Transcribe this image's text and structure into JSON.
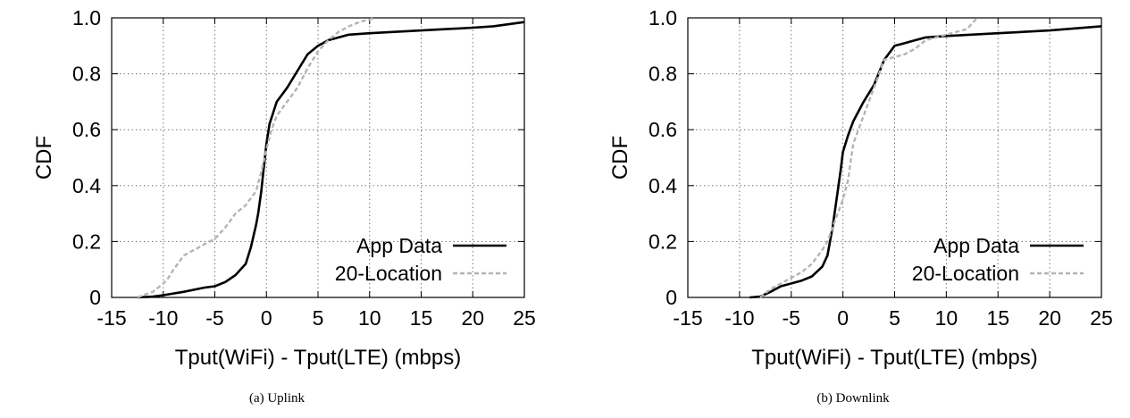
{
  "chart_data": [
    {
      "type": "line",
      "caption": "(a) Uplink",
      "xlabel": "Tput(WiFi) - Tput(LTE) (mbps)",
      "ylabel": "CDF",
      "xlim": [
        -15,
        25
      ],
      "ylim": [
        0,
        1
      ],
      "xticks": [
        "-15",
        "-10",
        "-5",
        "0",
        "5",
        "10",
        "15",
        "20",
        "25"
      ],
      "yticks": [
        "0",
        "0.2",
        "0.4",
        "0.6",
        "0.8",
        "1.0"
      ],
      "grid": true,
      "legend_position": "bottom-right",
      "series": [
        {
          "name": "App Data",
          "color": "#000000",
          "style": "solid",
          "x": [
            -12.5,
            -11,
            -10,
            -8,
            -6,
            -5,
            -4,
            -3,
            -2,
            -1.5,
            -1,
            -0.8,
            -0.5,
            -0.3,
            0,
            0.3,
            1,
            2,
            3,
            4,
            5,
            6,
            7,
            8,
            10,
            15,
            20,
            22,
            25
          ],
          "y": [
            0,
            0.003,
            0.008,
            0.02,
            0.035,
            0.04,
            0.055,
            0.08,
            0.12,
            0.18,
            0.26,
            0.3,
            0.38,
            0.45,
            0.55,
            0.62,
            0.7,
            0.75,
            0.81,
            0.87,
            0.9,
            0.92,
            0.93,
            0.94,
            0.945,
            0.955,
            0.965,
            0.97,
            0.985
          ]
        },
        {
          "name": "20-Location",
          "color": "#b4b4b4",
          "style": "dashed",
          "x": [
            -12.5,
            -11,
            -10,
            -9.5,
            -9,
            -8,
            -6,
            -5,
            -4,
            -3,
            -2,
            -1,
            -0.5,
            0,
            0.5,
            1,
            2,
            3,
            4,
            5,
            6,
            7,
            8,
            9,
            10,
            10.5
          ],
          "y": [
            0,
            0.02,
            0.05,
            0.07,
            0.1,
            0.15,
            0.19,
            0.21,
            0.25,
            0.3,
            0.33,
            0.38,
            0.45,
            0.53,
            0.6,
            0.65,
            0.7,
            0.75,
            0.82,
            0.88,
            0.92,
            0.95,
            0.97,
            0.985,
            0.995,
            1.0
          ]
        }
      ]
    },
    {
      "type": "line",
      "caption": "(b) Downlink",
      "xlabel": "Tput(WiFi) - Tput(LTE) (mbps)",
      "ylabel": "CDF",
      "xlim": [
        -15,
        25
      ],
      "ylim": [
        0,
        1
      ],
      "xticks": [
        "-15",
        "-10",
        "-5",
        "0",
        "5",
        "10",
        "15",
        "20",
        "25"
      ],
      "yticks": [
        "0",
        "0.2",
        "0.4",
        "0.6",
        "0.8",
        "1.0"
      ],
      "grid": true,
      "legend_position": "bottom-right",
      "series": [
        {
          "name": "App Data",
          "color": "#000000",
          "style": "solid",
          "x": [
            -9,
            -8,
            -7,
            -6,
            -5,
            -4,
            -3,
            -2,
            -1.5,
            -1,
            -0.5,
            -0.2,
            0,
            0.5,
            1,
            2,
            3,
            4,
            5,
            6,
            7,
            8,
            10,
            15,
            20,
            25
          ],
          "y": [
            0,
            0.003,
            0.02,
            0.04,
            0.05,
            0.06,
            0.075,
            0.11,
            0.15,
            0.25,
            0.38,
            0.46,
            0.52,
            0.58,
            0.63,
            0.7,
            0.76,
            0.85,
            0.9,
            0.91,
            0.92,
            0.93,
            0.935,
            0.945,
            0.955,
            0.97
          ]
        },
        {
          "name": "20-Location",
          "color": "#b4b4b4",
          "style": "dashed",
          "x": [
            -8,
            -7,
            -6,
            -5,
            -4,
            -3,
            -2,
            -1.5,
            -1,
            -0.5,
            0,
            0.5,
            1,
            2,
            3,
            4,
            5,
            6,
            7,
            8,
            10,
            12,
            13
          ],
          "y": [
            0,
            0.03,
            0.05,
            0.07,
            0.09,
            0.12,
            0.17,
            0.2,
            0.25,
            0.3,
            0.35,
            0.42,
            0.55,
            0.65,
            0.75,
            0.85,
            0.86,
            0.87,
            0.89,
            0.92,
            0.94,
            0.96,
            1.0
          ]
        }
      ]
    }
  ]
}
